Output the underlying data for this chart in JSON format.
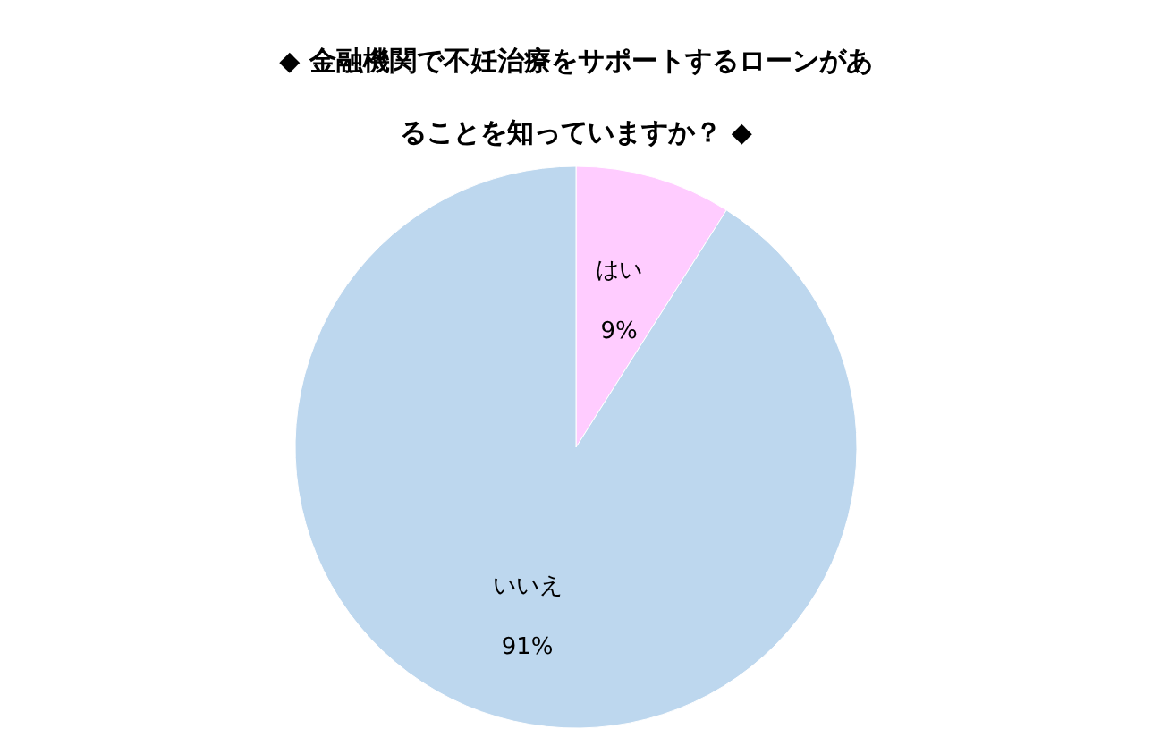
{
  "chart_data": {
    "type": "pie",
    "title": "◆ 金融機関で不妊治療をサポートするローンがあることを知っていますか？ ◆",
    "categories": [
      "はい",
      "いいえ"
    ],
    "values": [
      9,
      91
    ],
    "colors": [
      "#ffccff",
      "#bdd7ee"
    ],
    "value_labels": [
      "9%",
      "91%"
    ]
  }
}
